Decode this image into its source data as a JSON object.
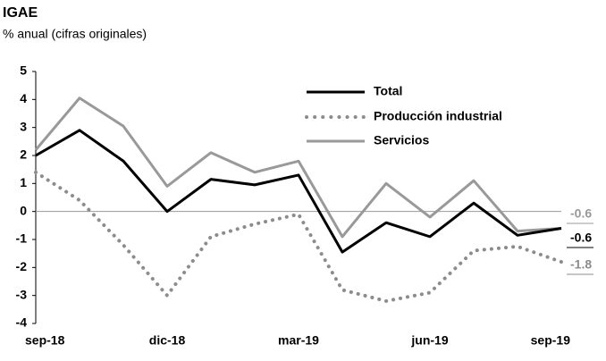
{
  "chart_data": {
    "type": "line",
    "title": "IGAE",
    "subtitle": "% anual (cifras originales)",
    "x": [
      "sep-18",
      null,
      null,
      "dic-18",
      null,
      null,
      "mar-19",
      null,
      null,
      "jun-19",
      null,
      null,
      "sep-19"
    ],
    "series": [
      {
        "name": "Total",
        "color": "#000000",
        "style": "solid",
        "values": [
          2.0,
          2.9,
          1.8,
          0.0,
          1.15,
          0.95,
          1.3,
          -1.45,
          -0.4,
          -0.9,
          0.3,
          -0.85,
          -0.6
        ]
      },
      {
        "name": "Producción industrial",
        "color": "#8c8c8c",
        "style": "dotted",
        "values": [
          1.4,
          0.4,
          -1.2,
          -3.0,
          -0.9,
          -0.45,
          -0.1,
          -2.8,
          -3.2,
          -2.9,
          -1.4,
          -1.25,
          -1.8
        ]
      },
      {
        "name": "Servicios",
        "color": "#999999",
        "style": "solid",
        "values": [
          2.2,
          4.05,
          3.05,
          0.9,
          2.1,
          1.4,
          1.8,
          -0.9,
          1.0,
          -0.2,
          1.1,
          -0.7,
          -0.6
        ]
      }
    ],
    "ylim": [
      -4,
      5
    ],
    "yticks": [
      -4,
      -3,
      -2,
      -1,
      0,
      1,
      2,
      3,
      4,
      5
    ],
    "grid": false
  }
}
